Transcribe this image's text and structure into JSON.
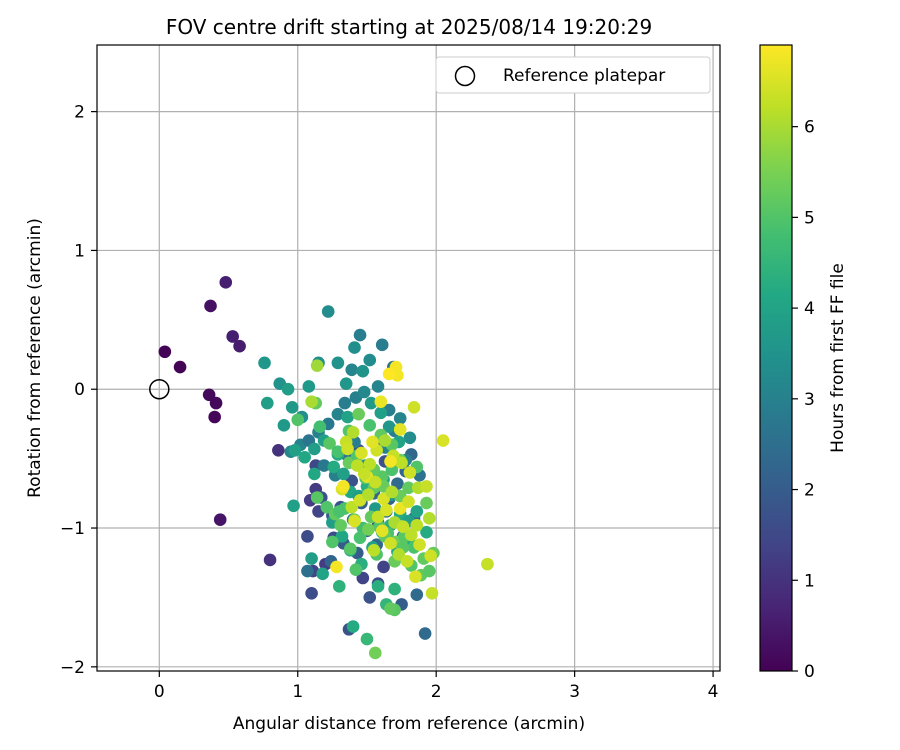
{
  "chart_data": {
    "type": "scatter",
    "title": "FOV centre drift starting at 2025/08/14 19:20:29",
    "xlabel": "Angular distance from reference (arcmin)",
    "ylabel": "Rotation from reference (arcmin)",
    "xlim": [
      -0.45,
      4.05
    ],
    "ylim": [
      -2.03,
      2.48
    ],
    "xticks": [
      0,
      1,
      2,
      3,
      4
    ],
    "yticks": [
      -2,
      -1,
      0,
      1,
      2
    ],
    "grid": true,
    "legend": {
      "placement": "top-right",
      "entries": [
        "Reference platepar"
      ]
    },
    "reference_point": {
      "label": "Reference platepar",
      "x": 0,
      "y": 0
    },
    "colorbar": {
      "label": "Hours from first FF file",
      "colormap": "viridis",
      "range": [
        0,
        6.9
      ],
      "ticks": [
        0,
        1,
        2,
        3,
        4,
        5,
        6
      ]
    },
    "series": [
      {
        "x": [
          0.04,
          0.15,
          0.36,
          0.41,
          0.4,
          0.37,
          0.48,
          0.53,
          0.58,
          0.44,
          0.8,
          0.86,
          1.09,
          1.13,
          1.15,
          1.07,
          1.11,
          1.2,
          1.37,
          1.47,
          1.52,
          1.58,
          1.62,
          1.1,
          1.17,
          1.25,
          1.31,
          1.26,
          1.39,
          1.43,
          1.5,
          1.58,
          1.66,
          1.75,
          1.86,
          1.92,
          1.07,
          1.13,
          1.44,
          1.5,
          1.55,
          1.63,
          1.72,
          1.78,
          1.82,
          1.88,
          1.24,
          1.33,
          1.4,
          1.46,
          1.53,
          1.6,
          1.57,
          1.64,
          1.76,
          1.84,
          1.19,
          1.27,
          1.35,
          1.41,
          1.49,
          1.55,
          1.63,
          1.7,
          1.78,
          0.95,
          1.02,
          1.08,
          1.15,
          1.22,
          1.29,
          1.34,
          1.42,
          1.48,
          1.58,
          1.66,
          1.74,
          1.81,
          1.45,
          1.39,
          1.52,
          1.61,
          1.69,
          0.76,
          0.87,
          0.93,
          0.96,
          1.03,
          1.08,
          1.15,
          1.22,
          1.29,
          1.35,
          1.41,
          1.47,
          1.53,
          1.6,
          1.66,
          1.73,
          0.78,
          0.9,
          0.98,
          1.05,
          1.12,
          1.19,
          1.26,
          1.33,
          1.38,
          1.44,
          1.5,
          1.56,
          1.62,
          1.68,
          1.74,
          1.8,
          1.86,
          1.93,
          0.97,
          1.1,
          1.18,
          1.25,
          1.32,
          1.38,
          1.46,
          1.54,
          1.61,
          1.67,
          1.72,
          1.78,
          1.84,
          1.3,
          1.4,
          1.5,
          1.58,
          1.64,
          1.7,
          1.12,
          1.29,
          1.36,
          1.0,
          1.13,
          1.16,
          1.23,
          1.29,
          1.37,
          1.43,
          1.49,
          1.55,
          1.61,
          1.68,
          1.74,
          1.8,
          1.86,
          1.93,
          1.14,
          1.21,
          1.27,
          1.34,
          1.41,
          1.47,
          1.53,
          1.59,
          1.65,
          1.71,
          1.77,
          1.84,
          1.91,
          1.98,
          1.25,
          1.31,
          1.38,
          1.45,
          1.51,
          1.57,
          1.63,
          1.7,
          1.76,
          1.82,
          1.89,
          1.95,
          1.37,
          1.44,
          1.52,
          1.6,
          1.68,
          1.74,
          1.49,
          1.55,
          1.62,
          1.7,
          1.3,
          1.42,
          1.56,
          1.67,
          1.1,
          1.14,
          1.35,
          1.4,
          1.46,
          1.52,
          1.57,
          1.63,
          1.69,
          1.75,
          1.81,
          1.87,
          1.93,
          1.32,
          1.39,
          1.45,
          1.51,
          1.58,
          1.64,
          1.7,
          1.76,
          1.82,
          1.88,
          1.95,
          2.05,
          1.28,
          1.36,
          1.43,
          1.5,
          1.56,
          1.62,
          1.68,
          1.74,
          1.8,
          1.86,
          1.97,
          1.33,
          1.41,
          1.48,
          1.55,
          1.61,
          1.67,
          1.73,
          1.79,
          1.85,
          1.96,
          2.37,
          1.72,
          1.71,
          1.66,
          1.6,
          1.54,
          1.67,
          1.84,
          1.74
        ],
        "y": [
          0.27,
          0.16,
          -0.04,
          -0.1,
          -0.2,
          0.6,
          0.77,
          0.38,
          0.31,
          -0.94,
          -1.23,
          -0.44,
          -0.8,
          -0.72,
          -0.88,
          -1.06,
          -1.31,
          -1.26,
          -1.73,
          -1.36,
          -1.5,
          -1.4,
          -1.28,
          -1.47,
          -0.78,
          -0.91,
          -0.85,
          -1.07,
          -0.66,
          -1.18,
          -1.02,
          -0.96,
          -0.79,
          -1.55,
          -1.48,
          -1.76,
          -1.31,
          -0.55,
          -0.44,
          -0.63,
          -0.75,
          -0.52,
          -0.68,
          -0.59,
          -0.47,
          -0.62,
          -1.24,
          -1.11,
          -0.94,
          -0.82,
          -0.7,
          -0.37,
          -1.12,
          -0.88,
          -1.06,
          -0.93,
          -0.55,
          -0.62,
          -0.47,
          -0.38,
          -0.55,
          -0.68,
          -0.42,
          -0.3,
          -0.51,
          -0.45,
          -0.4,
          -0.37,
          -0.31,
          -0.25,
          -0.18,
          -0.1,
          -0.06,
          -0.02,
          0.02,
          -0.15,
          -0.21,
          -0.35,
          0.39,
          0.14,
          0.21,
          0.32,
          0.16,
          0.19,
          0.04,
          0.0,
          -0.13,
          -0.2,
          0.02,
          0.19,
          0.56,
          0.19,
          0.04,
          0.3,
          0.13,
          -0.1,
          -0.17,
          -0.27,
          -0.38,
          -0.1,
          -0.26,
          -0.44,
          -0.49,
          -0.43,
          -0.37,
          -0.56,
          -0.61,
          -0.74,
          -0.77,
          -0.7,
          -0.86,
          -0.65,
          -0.76,
          -0.9,
          -0.95,
          -0.88,
          -1.03,
          -0.84,
          -1.22,
          -1.33,
          -0.96,
          -1.06,
          -1.16,
          -1.26,
          -1.14,
          -1.03,
          -0.98,
          -1.17,
          -1.08,
          -1.13,
          -1.42,
          -1.71,
          -1.8,
          -1.42,
          -1.55,
          -1.44,
          -0.61,
          -0.47,
          -0.2,
          -0.22,
          -0.1,
          -0.27,
          -0.39,
          -0.45,
          -0.53,
          -0.48,
          -0.6,
          -0.71,
          -0.63,
          -0.58,
          -0.77,
          -0.71,
          -0.56,
          -0.82,
          -0.78,
          -0.85,
          -0.9,
          -0.86,
          -0.94,
          -1.0,
          -0.92,
          -0.99,
          -1.04,
          -1.1,
          -1.06,
          -1.14,
          -1.22,
          -1.18,
          -1.1,
          -0.98,
          -1.15,
          -1.07,
          -1.01,
          -1.19,
          -1.06,
          -1.24,
          -1.14,
          -1.27,
          -1.34,
          -1.31,
          -0.3,
          -0.18,
          -0.26,
          -0.33,
          -0.4,
          -0.51,
          -0.64,
          -0.58,
          -0.7,
          -1.59,
          -0.88,
          -1.3,
          -1.9,
          -1.58,
          -0.09,
          0.17,
          -0.38,
          -0.31,
          -0.46,
          -0.54,
          -0.44,
          -0.37,
          -0.48,
          -0.53,
          -0.6,
          -0.71,
          -0.7,
          -0.72,
          -0.85,
          -0.8,
          -0.76,
          -0.92,
          -0.87,
          -0.96,
          -0.99,
          -1.05,
          -1.12,
          -0.93,
          -0.37,
          -1.28,
          -0.43,
          -0.55,
          -0.63,
          -0.67,
          -0.79,
          -0.74,
          -0.86,
          -0.81,
          -0.98,
          -1.47,
          -0.7,
          -0.95,
          -0.61,
          -1.16,
          -1.02,
          -1.11,
          -1.19,
          -1.24,
          -1.35,
          -1.2,
          -1.26,
          0.1,
          0.16,
          0.11,
          -0.09,
          -0.38,
          -0.52,
          -0.13,
          -0.29
        ],
        "c": [
          0.05,
          0.05,
          0.15,
          0.15,
          0.1,
          0.3,
          0.6,
          0.6,
          0.55,
          0.4,
          1.0,
          1.0,
          1.2,
          1.2,
          1.4,
          1.6,
          1.4,
          1.2,
          1.8,
          1.4,
          1.8,
          1.6,
          1.4,
          1.6,
          1.8,
          2.0,
          1.8,
          1.6,
          1.8,
          2.0,
          2.0,
          1.8,
          2.2,
          2.0,
          2.4,
          2.4,
          2.5,
          1.5,
          1.7,
          2.1,
          2.3,
          1.7,
          2.4,
          2.2,
          2.3,
          2.6,
          2.2,
          2.0,
          2.6,
          2.1,
          2.4,
          2.2,
          2.3,
          2.5,
          2.5,
          2.4,
          2.8,
          3.0,
          2.7,
          2.9,
          3.2,
          2.8,
          3.1,
          2.9,
          3.0,
          3.2,
          3.1,
          2.7,
          3.0,
          2.8,
          3.1,
          2.9,
          3.0,
          3.2,
          3.1,
          2.9,
          3.1,
          3.3,
          2.9,
          3.1,
          3.3,
          2.9,
          2.7,
          3.6,
          3.5,
          3.8,
          3.7,
          3.4,
          3.7,
          3.4,
          3.3,
          3.5,
          3.6,
          3.4,
          3.5,
          3.7,
          3.9,
          3.6,
          4.0,
          3.8,
          3.7,
          3.9,
          4.1,
          3.8,
          3.9,
          4.2,
          3.9,
          4.1,
          3.8,
          4.3,
          3.7,
          4.1,
          3.6,
          4.2,
          3.9,
          4.0,
          4.2,
          3.9,
          3.8,
          4.0,
          3.8,
          4.1,
          4.2,
          4.3,
          4.0,
          4.1,
          4.3,
          4.1,
          4.2,
          4.3,
          4.4,
          4.2,
          4.6,
          4.3,
          4.5,
          4.4,
          4.1,
          4.2,
          4.0,
          5.0,
          5.2,
          4.8,
          5.1,
          4.9,
          5.3,
          5.0,
          4.9,
          5.2,
          5.1,
          4.9,
          5.3,
          5.2,
          5.0,
          5.3,
          5.1,
          5.0,
          5.2,
          4.9,
          5.3,
          4.8,
          5.2,
          5.0,
          4.9,
          5.4,
          5.1,
          4.9,
          5.2,
          5.3,
          5.0,
          5.2,
          5.1,
          4.9,
          5.4,
          5.0,
          5.2,
          5.3,
          5.1,
          5.0,
          5.2,
          5.1,
          5.0,
          5.3,
          4.9,
          5.2,
          5.1,
          5.4,
          5.0,
          5.2,
          5.3,
          5.1,
          4.9,
          5.0,
          5.4,
          5.2,
          6.0,
          5.9,
          6.3,
          6.1,
          6.5,
          6.2,
          6.4,
          6.0,
          6.3,
          6.2,
          6.4,
          6.1,
          6.3,
          6.5,
          6.2,
          6.4,
          6.1,
          6.3,
          6.5,
          6.0,
          6.3,
          6.2,
          6.4,
          6.1,
          6.5,
          6.8,
          6.4,
          6.2,
          6.6,
          6.3,
          6.5,
          6.1,
          6.7,
          6.4,
          6.2,
          6.3,
          6.8,
          6.5,
          6.3,
          6.2,
          6.6,
          6.4,
          6.1,
          6.3,
          6.5,
          6.4,
          6.3,
          6.8,
          6.8,
          6.9,
          6.7,
          6.6,
          6.8,
          6.4,
          6.6
        ]
      }
    ]
  }
}
